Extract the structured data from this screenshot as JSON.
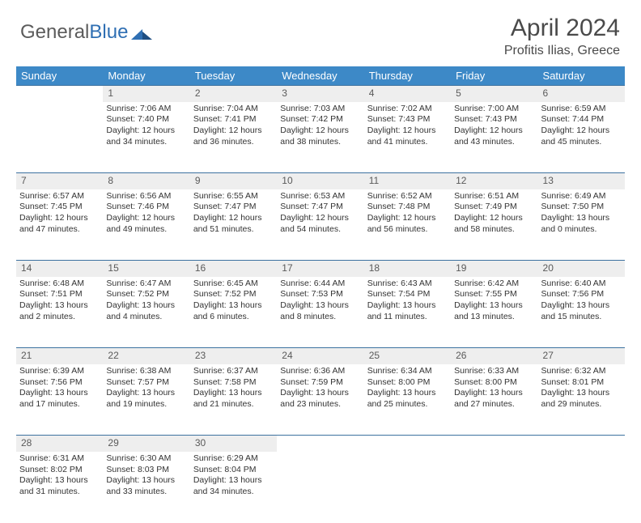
{
  "brand": {
    "part1": "General",
    "part2": "Blue"
  },
  "title": "April 2024",
  "location": "Profitis Ilias, Greece",
  "colors": {
    "header_bg": "#3d89c7",
    "row_divider": "#3d72a0",
    "daynum_bg": "#eeeeee",
    "text": "#333333",
    "brand_grey": "#5b5b5b",
    "brand_blue": "#2f6fb3",
    "page_bg": "#ffffff"
  },
  "typography": {
    "title_fontsize": 30,
    "location_fontsize": 16,
    "header_fontsize": 13,
    "daynum_fontsize": 12,
    "body_fontsize": 10.5
  },
  "day_headers": [
    "Sunday",
    "Monday",
    "Tuesday",
    "Wednesday",
    "Thursday",
    "Friday",
    "Saturday"
  ],
  "weeks": [
    [
      null,
      {
        "n": "1",
        "sunrise": "Sunrise: 7:06 AM",
        "sunset": "Sunset: 7:40 PM",
        "day1": "Daylight: 12 hours",
        "day2": "and 34 minutes."
      },
      {
        "n": "2",
        "sunrise": "Sunrise: 7:04 AM",
        "sunset": "Sunset: 7:41 PM",
        "day1": "Daylight: 12 hours",
        "day2": "and 36 minutes."
      },
      {
        "n": "3",
        "sunrise": "Sunrise: 7:03 AM",
        "sunset": "Sunset: 7:42 PM",
        "day1": "Daylight: 12 hours",
        "day2": "and 38 minutes."
      },
      {
        "n": "4",
        "sunrise": "Sunrise: 7:02 AM",
        "sunset": "Sunset: 7:43 PM",
        "day1": "Daylight: 12 hours",
        "day2": "and 41 minutes."
      },
      {
        "n": "5",
        "sunrise": "Sunrise: 7:00 AM",
        "sunset": "Sunset: 7:43 PM",
        "day1": "Daylight: 12 hours",
        "day2": "and 43 minutes."
      },
      {
        "n": "6",
        "sunrise": "Sunrise: 6:59 AM",
        "sunset": "Sunset: 7:44 PM",
        "day1": "Daylight: 12 hours",
        "day2": "and 45 minutes."
      }
    ],
    [
      {
        "n": "7",
        "sunrise": "Sunrise: 6:57 AM",
        "sunset": "Sunset: 7:45 PM",
        "day1": "Daylight: 12 hours",
        "day2": "and 47 minutes."
      },
      {
        "n": "8",
        "sunrise": "Sunrise: 6:56 AM",
        "sunset": "Sunset: 7:46 PM",
        "day1": "Daylight: 12 hours",
        "day2": "and 49 minutes."
      },
      {
        "n": "9",
        "sunrise": "Sunrise: 6:55 AM",
        "sunset": "Sunset: 7:47 PM",
        "day1": "Daylight: 12 hours",
        "day2": "and 51 minutes."
      },
      {
        "n": "10",
        "sunrise": "Sunrise: 6:53 AM",
        "sunset": "Sunset: 7:47 PM",
        "day1": "Daylight: 12 hours",
        "day2": "and 54 minutes."
      },
      {
        "n": "11",
        "sunrise": "Sunrise: 6:52 AM",
        "sunset": "Sunset: 7:48 PM",
        "day1": "Daylight: 12 hours",
        "day2": "and 56 minutes."
      },
      {
        "n": "12",
        "sunrise": "Sunrise: 6:51 AM",
        "sunset": "Sunset: 7:49 PM",
        "day1": "Daylight: 12 hours",
        "day2": "and 58 minutes."
      },
      {
        "n": "13",
        "sunrise": "Sunrise: 6:49 AM",
        "sunset": "Sunset: 7:50 PM",
        "day1": "Daylight: 13 hours",
        "day2": "and 0 minutes."
      }
    ],
    [
      {
        "n": "14",
        "sunrise": "Sunrise: 6:48 AM",
        "sunset": "Sunset: 7:51 PM",
        "day1": "Daylight: 13 hours",
        "day2": "and 2 minutes."
      },
      {
        "n": "15",
        "sunrise": "Sunrise: 6:47 AM",
        "sunset": "Sunset: 7:52 PM",
        "day1": "Daylight: 13 hours",
        "day2": "and 4 minutes."
      },
      {
        "n": "16",
        "sunrise": "Sunrise: 6:45 AM",
        "sunset": "Sunset: 7:52 PM",
        "day1": "Daylight: 13 hours",
        "day2": "and 6 minutes."
      },
      {
        "n": "17",
        "sunrise": "Sunrise: 6:44 AM",
        "sunset": "Sunset: 7:53 PM",
        "day1": "Daylight: 13 hours",
        "day2": "and 8 minutes."
      },
      {
        "n": "18",
        "sunrise": "Sunrise: 6:43 AM",
        "sunset": "Sunset: 7:54 PM",
        "day1": "Daylight: 13 hours",
        "day2": "and 11 minutes."
      },
      {
        "n": "19",
        "sunrise": "Sunrise: 6:42 AM",
        "sunset": "Sunset: 7:55 PM",
        "day1": "Daylight: 13 hours",
        "day2": "and 13 minutes."
      },
      {
        "n": "20",
        "sunrise": "Sunrise: 6:40 AM",
        "sunset": "Sunset: 7:56 PM",
        "day1": "Daylight: 13 hours",
        "day2": "and 15 minutes."
      }
    ],
    [
      {
        "n": "21",
        "sunrise": "Sunrise: 6:39 AM",
        "sunset": "Sunset: 7:56 PM",
        "day1": "Daylight: 13 hours",
        "day2": "and 17 minutes."
      },
      {
        "n": "22",
        "sunrise": "Sunrise: 6:38 AM",
        "sunset": "Sunset: 7:57 PM",
        "day1": "Daylight: 13 hours",
        "day2": "and 19 minutes."
      },
      {
        "n": "23",
        "sunrise": "Sunrise: 6:37 AM",
        "sunset": "Sunset: 7:58 PM",
        "day1": "Daylight: 13 hours",
        "day2": "and 21 minutes."
      },
      {
        "n": "24",
        "sunrise": "Sunrise: 6:36 AM",
        "sunset": "Sunset: 7:59 PM",
        "day1": "Daylight: 13 hours",
        "day2": "and 23 minutes."
      },
      {
        "n": "25",
        "sunrise": "Sunrise: 6:34 AM",
        "sunset": "Sunset: 8:00 PM",
        "day1": "Daylight: 13 hours",
        "day2": "and 25 minutes."
      },
      {
        "n": "26",
        "sunrise": "Sunrise: 6:33 AM",
        "sunset": "Sunset: 8:00 PM",
        "day1": "Daylight: 13 hours",
        "day2": "and 27 minutes."
      },
      {
        "n": "27",
        "sunrise": "Sunrise: 6:32 AM",
        "sunset": "Sunset: 8:01 PM",
        "day1": "Daylight: 13 hours",
        "day2": "and 29 minutes."
      }
    ],
    [
      {
        "n": "28",
        "sunrise": "Sunrise: 6:31 AM",
        "sunset": "Sunset: 8:02 PM",
        "day1": "Daylight: 13 hours",
        "day2": "and 31 minutes."
      },
      {
        "n": "29",
        "sunrise": "Sunrise: 6:30 AM",
        "sunset": "Sunset: 8:03 PM",
        "day1": "Daylight: 13 hours",
        "day2": "and 33 minutes."
      },
      {
        "n": "30",
        "sunrise": "Sunrise: 6:29 AM",
        "sunset": "Sunset: 8:04 PM",
        "day1": "Daylight: 13 hours",
        "day2": "and 34 minutes."
      },
      null,
      null,
      null,
      null
    ]
  ]
}
